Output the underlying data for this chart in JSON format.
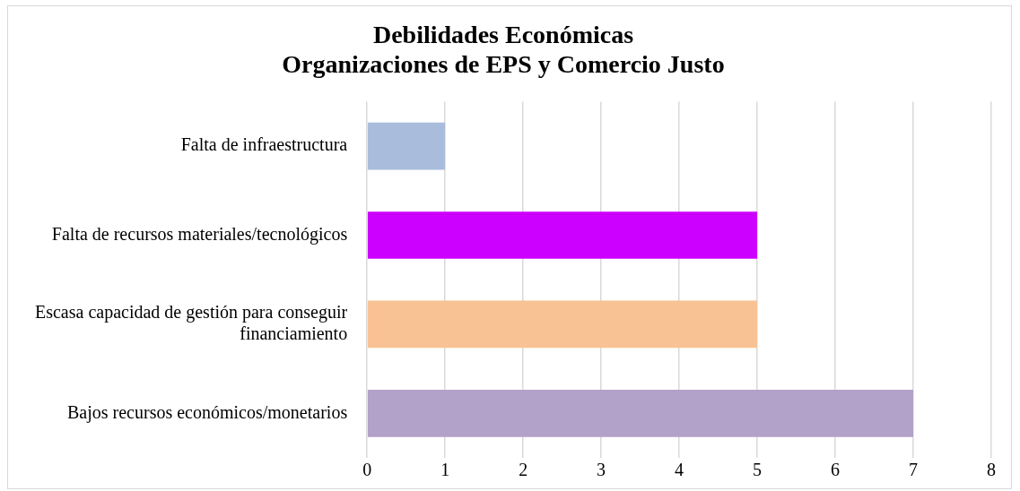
{
  "chart_data": {
    "type": "bar",
    "orientation": "horizontal",
    "title": "Debilidades Económicas\nOrganizaciones de EPS y Comercio Justo",
    "categories": [
      "Falta de infraestructura",
      "Falta de recursos materiales/tecnológicos",
      "Escasa capacidad de gestión para conseguir financiamiento",
      "Bajos recursos económicos/monetarios"
    ],
    "values": [
      1,
      5,
      5,
      7
    ],
    "colors": [
      "#a9bcdb",
      "#cc00ff",
      "#f8c294",
      "#b2a1c8"
    ],
    "xlim": [
      0,
      8
    ],
    "xticks": [
      0,
      1,
      2,
      3,
      4,
      5,
      6,
      7,
      8
    ],
    "grid": "x",
    "legend": false
  }
}
